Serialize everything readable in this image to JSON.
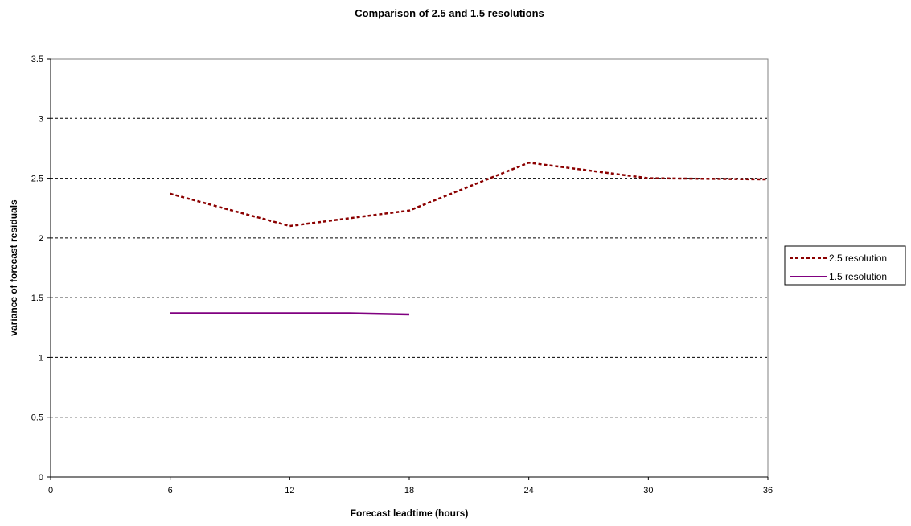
{
  "chart_data": {
    "type": "line",
    "title": "Comparison of 2.5 and 1.5 resolutions",
    "xlabel": "Forecast leadtime (hours)",
    "ylabel": "variance of forecast residuals",
    "xlim": [
      0,
      36
    ],
    "ylim": [
      0,
      3.5
    ],
    "x_ticks": [
      "0",
      "6",
      "12",
      "18",
      "24",
      "30",
      "36"
    ],
    "y_ticks": [
      "0",
      "0.5",
      "1",
      "1.5",
      "2",
      "2.5",
      "3",
      "3.5"
    ],
    "grid": "horizontal dashed",
    "legend_position": "right",
    "series": [
      {
        "name": "2.5 resolution",
        "color": "#8b0000",
        "style": "dashed",
        "x": [
          6,
          12,
          18,
          24,
          30,
          36
        ],
        "y": [
          2.37,
          2.1,
          2.23,
          2.63,
          2.5,
          2.49
        ]
      },
      {
        "name": "1.5 resolution",
        "color": "#800080",
        "style": "solid",
        "x": [
          6,
          15,
          18
        ],
        "y": [
          1.37,
          1.37,
          1.36
        ]
      }
    ]
  }
}
